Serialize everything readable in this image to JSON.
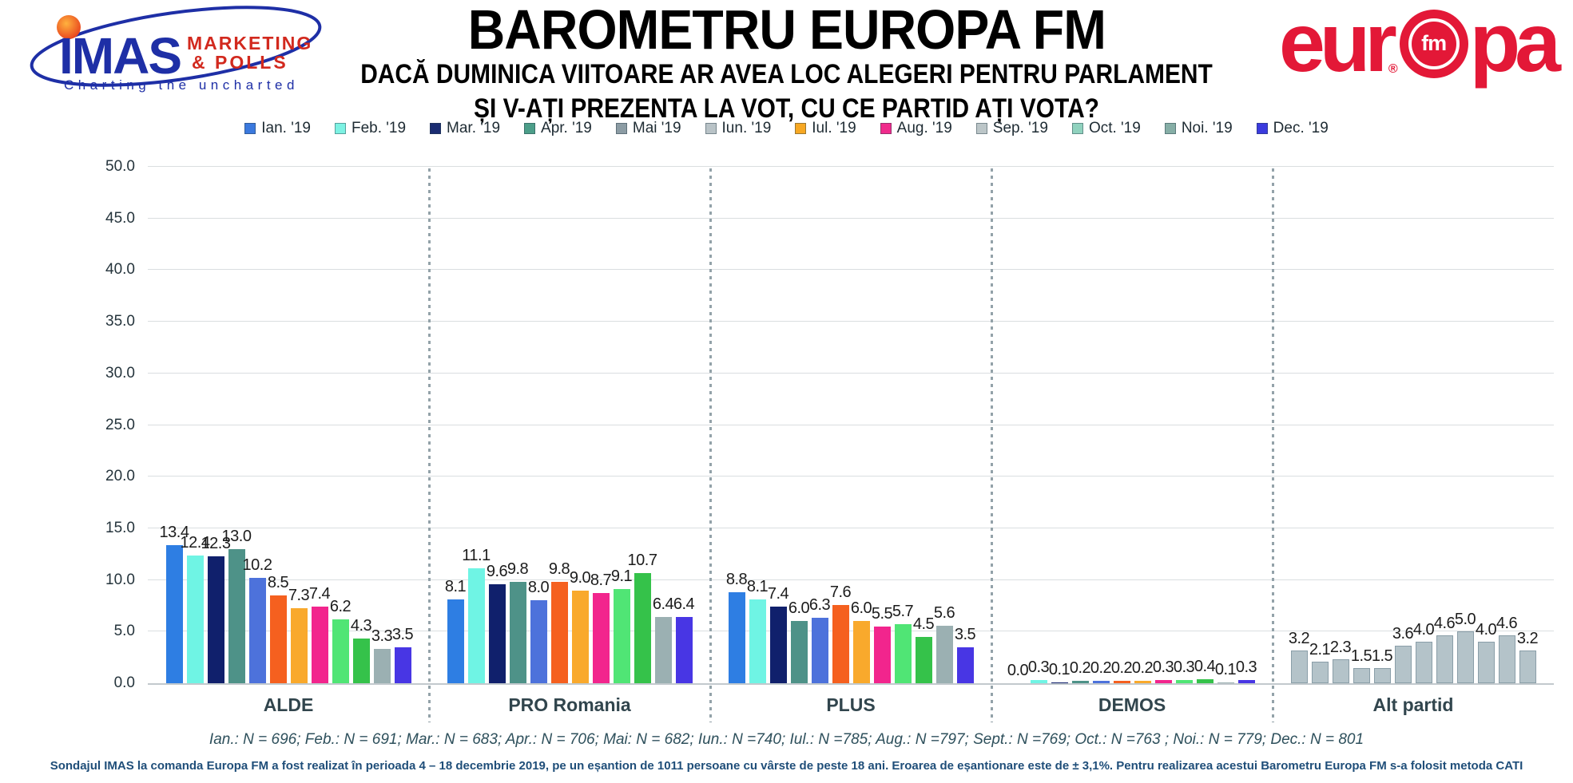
{
  "header": {
    "imas_logo": {
      "name": "IMAS",
      "sub1": "MARKETING",
      "sub2": "& POLLS",
      "tagline": "Charting the uncharted",
      "blue": "#1E2FA6",
      "red": "#D2291E",
      "ball_orange": "#FFB23E",
      "ball_red": "#E8401C"
    },
    "title": "BAROMETRU EUROPA FM",
    "subtitle1": "DACĂ DUMINICA VIITOARE AR AVEA LOC ALEGERI PENTRU PARLAMENT",
    "subtitle2": "ȘI V-AȚI PREZENTA LA VOT, CU CE PARTID AȚI VOTA?",
    "europafm_logo": {
      "part1": "eur",
      "fm": "fm",
      "part2": "pa",
      "reg": "®",
      "red": "#E31837"
    }
  },
  "chart_data": {
    "type": "bar",
    "title": "BAROMETRU EUROPA FM",
    "categories": [
      "ALDE",
      "PRO Romania",
      "PLUS",
      "DEMOS",
      "Alt partid"
    ],
    "series": [
      {
        "name": "Ian. '19",
        "legend_color": "#3B79DE",
        "bar_color": "#2E7EE3",
        "values": [
          13.4,
          8.1,
          8.8,
          0.0,
          3.2
        ]
      },
      {
        "name": "Feb. '19",
        "legend_color": "#7DF2E3",
        "bar_color": "#6FF4E4",
        "values": [
          12.4,
          11.1,
          8.1,
          0.3,
          2.1
        ]
      },
      {
        "name": "Mar. '19",
        "legend_color": "#1A2C72",
        "bar_color": "#10206C",
        "values": [
          12.3,
          9.6,
          7.4,
          0.1,
          2.3
        ]
      },
      {
        "name": "Apr. '19",
        "legend_color": "#4C9E89",
        "bar_color": "#4E9288",
        "values": [
          13.0,
          9.8,
          6.0,
          0.2,
          1.5
        ]
      },
      {
        "name": "Mai '19",
        "legend_color": "#8C9CA4",
        "bar_color": "#4D72DB",
        "values": [
          10.2,
          8.0,
          6.3,
          0.2,
          1.5
        ]
      },
      {
        "name": "Iun. '19",
        "legend_color": "#B9C3C7",
        "bar_color": "#F5601F",
        "values": [
          8.5,
          9.8,
          7.6,
          0.2,
          3.6
        ]
      },
      {
        "name": "Iul. '19",
        "legend_color": "#F7A823",
        "bar_color": "#F9A92C",
        "values": [
          7.3,
          9.0,
          6.0,
          0.2,
          4.0
        ]
      },
      {
        "name": "Aug. '19",
        "legend_color": "#F02A8C",
        "bar_color": "#F2258D",
        "values": [
          7.4,
          8.7,
          5.5,
          0.3,
          4.6
        ]
      },
      {
        "name": "Sep. '19",
        "legend_color": "#BCC6C8",
        "bar_color": "#50E575",
        "values": [
          6.2,
          9.1,
          5.7,
          0.3,
          5.0
        ]
      },
      {
        "name": "Oct. '19",
        "legend_color": "#90D2BE",
        "bar_color": "#35C24A",
        "values": [
          4.3,
          10.7,
          4.5,
          0.4,
          4.0
        ]
      },
      {
        "name": "Noi. '19",
        "legend_color": "#86AEA6",
        "bar_color": "#9BB0B2",
        "values": [
          3.3,
          6.4,
          5.6,
          0.1,
          4.6
        ]
      },
      {
        "name": "Dec. '19",
        "legend_color": "#3B3BDE",
        "bar_color": "#4836E4",
        "values": [
          3.5,
          6.4,
          3.5,
          0.3,
          3.2
        ]
      }
    ],
    "category_color_override": {
      "Alt partid": {
        "fill": "#B4C3C9",
        "border": "#8A9EA8"
      }
    },
    "ylim": [
      0,
      50
    ],
    "ytick_step": 5,
    "ytick_labels": [
      "0.0",
      "5.0",
      "10.0",
      "15.0",
      "20.0",
      "25.0",
      "30.0",
      "35.0",
      "40.0",
      "45.0",
      "50.0"
    ],
    "grid": true,
    "legend_position": "top",
    "value_labels": true
  },
  "footnotes": {
    "sample_sizes": "Ian.: N = 696; Feb.: N = 691; Mar.: N = 683; Apr.: N = 706; Mai: N = 682; Iun.: N =740; Iul.: N =785; Aug.: N =797; Sept.: N =769; Oct.: N =763 ; Noi.: N = 779; Dec.: N = 801",
    "method": "Sondajul IMAS la comanda Europa FM a fost realizat în perioada 4 – 18 decembrie 2019, pe un eșantion de 1011 persoane cu vârste de peste 18 ani. Eroarea de eșantionare este de ± 3,1%. Pentru realizarea acestui Barometru Europa FM s-a folosit metoda CATI"
  }
}
